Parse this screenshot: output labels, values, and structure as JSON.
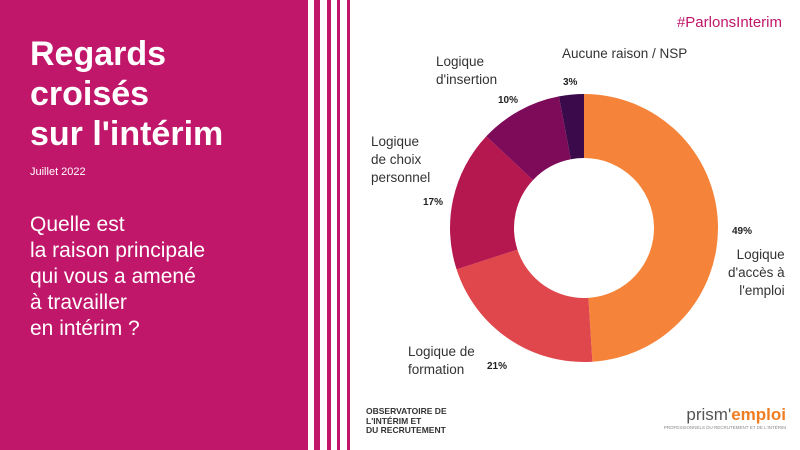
{
  "title_lines": [
    "Regards",
    "croisés",
    "sur l'intérim"
  ],
  "date": "Juillet 2022",
  "question_lines": [
    "Quelle est",
    "la raison principale",
    "qui vous a amené",
    "à travailler",
    "en intérim ?"
  ],
  "hashtag": "#ParlonsInterim",
  "colors": {
    "brand_magenta": "#c0176a"
  },
  "chart_data": {
    "type": "pie",
    "categories": [
      "Logique d'accès à l'emploi",
      "Logique de formation",
      "Logique de choix personnel",
      "Logique d'insertion",
      "Aucune raison / NSP"
    ],
    "values": [
      49,
      21,
      17,
      10,
      3
    ],
    "value_labels": [
      "49%",
      "21%",
      "17%",
      "10%",
      "3%"
    ],
    "label_lines": [
      [
        "Logique",
        "d'accès à",
        "l'emploi"
      ],
      [
        "Logique de",
        "formation"
      ],
      [
        "Logique",
        "de choix",
        "personnel"
      ],
      [
        "Logique",
        "d'insertion"
      ],
      [
        "Aucune raison / NSP"
      ]
    ],
    "colors": [
      "#f5843a",
      "#e0474c",
      "#b5184f",
      "#7e0a5a",
      "#3a0a4a"
    ],
    "donut": true
  },
  "footer": {
    "observatoire_lines": [
      "OBSERVATOIRE DE",
      "L'INTÉRIM ET",
      "DU RECRUTEMENT"
    ],
    "prism_left": "prism'",
    "prism_right": "emploi",
    "prism_tagline": "PROFESSIONNELS DU RECRUTEMENT ET DE L'INTÉRIM"
  }
}
